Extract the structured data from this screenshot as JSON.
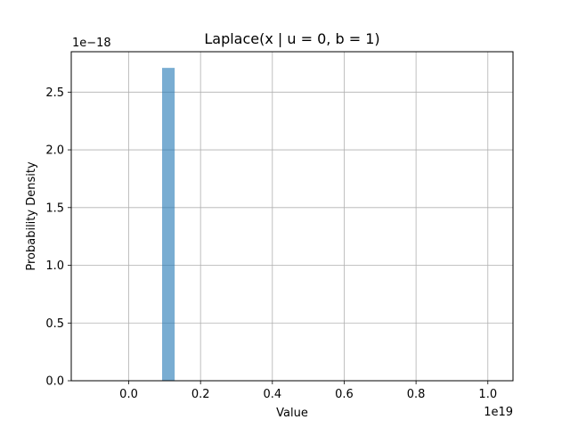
{
  "chart_data": {
    "type": "bar",
    "title": "Laplace(x | u = 0, b = 1)",
    "xlabel": "Value",
    "ylabel": "Probability Density",
    "x_offset_label": "1e19",
    "y_offset_label": "1e−18",
    "xlim": [
      -0.16,
      1.07
    ],
    "ylim": [
      0,
      2.85
    ],
    "x_ticks": [
      0.0,
      0.2,
      0.4,
      0.6,
      0.8,
      1.0
    ],
    "x_tick_labels": [
      "0.0",
      "0.2",
      "0.4",
      "0.6",
      "0.8",
      "1.0"
    ],
    "y_ticks": [
      0.0,
      0.5,
      1.0,
      1.5,
      2.0,
      2.5
    ],
    "y_tick_labels": [
      "0.0",
      "0.5",
      "1.0",
      "1.5",
      "2.0",
      "2.5"
    ],
    "grid": true,
    "bar_color": "#1f77b4",
    "bar_alpha": 0.6,
    "bins": [
      {
        "x0": 0.093,
        "x1": 0.128,
        "value": 2.71
      }
    ]
  }
}
